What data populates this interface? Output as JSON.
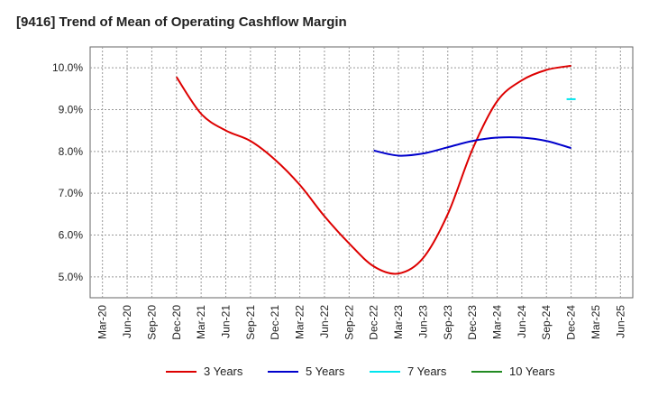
{
  "chart_data": {
    "type": "line",
    "title": "[9416]  Trend of Mean of Operating Cashflow Margin",
    "xlabel": "",
    "ylabel": "",
    "x_ticks": [
      "Mar-20",
      "Jun-20",
      "Sep-20",
      "Dec-20",
      "Mar-21",
      "Jun-21",
      "Sep-21",
      "Dec-21",
      "Mar-22",
      "Jun-22",
      "Sep-22",
      "Dec-22",
      "Mar-23",
      "Jun-23",
      "Sep-23",
      "Dec-23",
      "Mar-24",
      "Jun-24",
      "Sep-24",
      "Dec-24",
      "Mar-25",
      "Jun-25"
    ],
    "y_ticks": [
      "5.0%",
      "6.0%",
      "7.0%",
      "8.0%",
      "9.0%",
      "10.0%"
    ],
    "y_tick_values": [
      5,
      6,
      7,
      8,
      9,
      10
    ],
    "ylim": [
      4.5,
      10.5
    ],
    "grid": true,
    "legend_position": "bottom",
    "series": [
      {
        "name": "3 Years",
        "color": "#dd0000",
        "points": [
          [
            "Dec-20",
            9.78
          ],
          [
            "Mar-21",
            8.9
          ],
          [
            "Jun-21",
            8.5
          ],
          [
            "Sep-21",
            8.25
          ],
          [
            "Dec-21",
            7.8
          ],
          [
            "Mar-22",
            7.2
          ],
          [
            "Jun-22",
            6.45
          ],
          [
            "Sep-22",
            5.8
          ],
          [
            "Dec-22",
            5.25
          ],
          [
            "Mar-23",
            5.08
          ],
          [
            "Jun-23",
            5.45
          ],
          [
            "Sep-23",
            6.5
          ],
          [
            "Dec-23",
            8.05
          ],
          [
            "Mar-24",
            9.2
          ],
          [
            "Jun-24",
            9.7
          ],
          [
            "Sep-24",
            9.95
          ],
          [
            "Dec-24",
            10.05
          ]
        ]
      },
      {
        "name": "5 Years",
        "color": "#0000cc",
        "points": [
          [
            "Dec-22",
            8.02
          ],
          [
            "Mar-23",
            7.9
          ],
          [
            "Jun-23",
            7.95
          ],
          [
            "Sep-23",
            8.1
          ],
          [
            "Dec-23",
            8.25
          ],
          [
            "Mar-24",
            8.33
          ],
          [
            "Jun-24",
            8.33
          ],
          [
            "Sep-24",
            8.25
          ],
          [
            "Dec-24",
            8.08
          ]
        ]
      },
      {
        "name": "7 Years",
        "color": "#00e5ee",
        "points": [
          [
            "Dec-24",
            9.25
          ]
        ]
      },
      {
        "name": "10 Years",
        "color": "#228b22",
        "points": []
      }
    ]
  }
}
